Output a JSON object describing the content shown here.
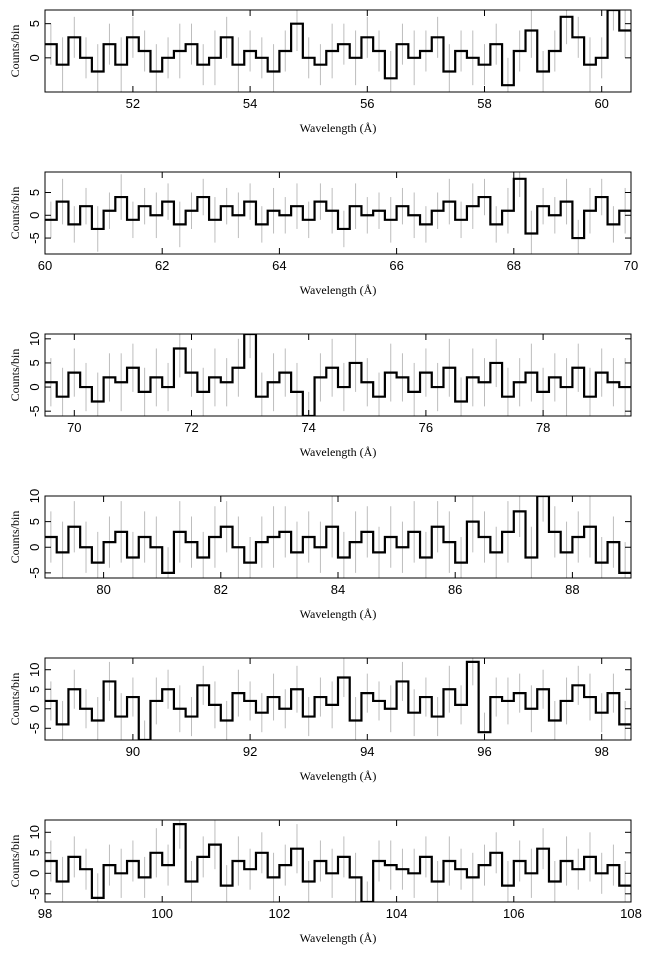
{
  "chart_data": [
    {
      "type": "step",
      "xlabel": "Wavelength (Å)",
      "ylabel": "Counts/bin",
      "color": "#000000",
      "error_color": "#bdbdbd",
      "xlim": [
        50.5,
        60.5
      ],
      "ylim": [
        -5,
        7
      ],
      "xticks": [
        52,
        54,
        56,
        58,
        60
      ],
      "yticks": [
        0,
        5
      ],
      "x": [
        50.6,
        50.8,
        51,
        51.2,
        51.4,
        51.6,
        51.8,
        52,
        52.2,
        52.4,
        52.6,
        52.8,
        53,
        53.2,
        53.4,
        53.6,
        53.8,
        54,
        54.2,
        54.4,
        54.6,
        54.8,
        55,
        55.2,
        55.4,
        55.6,
        55.8,
        56,
        56.2,
        56.4,
        56.6,
        56.8,
        57,
        57.2,
        57.4,
        57.6,
        57.8,
        58,
        58.2,
        58.4,
        58.6,
        58.8,
        59,
        59.2,
        59.4,
        59.6,
        59.8,
        60,
        60.2,
        60.4
      ],
      "values": [
        2,
        -1,
        3,
        0,
        -2,
        2,
        -1,
        3,
        1,
        -2,
        0,
        1,
        2,
        -1,
        0,
        3,
        -1,
        1,
        0,
        -2,
        1,
        5,
        0,
        -1,
        1,
        2,
        0,
        3,
        1,
        -3,
        2,
        0,
        1,
        3,
        -2,
        1,
        0,
        -1,
        2,
        -4,
        1,
        4,
        -2,
        1,
        6,
        3,
        -1,
        0,
        7,
        4
      ],
      "errors": [
        3,
        4,
        3,
        3,
        4,
        3,
        4,
        3,
        3,
        4,
        3,
        4,
        3,
        3,
        4,
        3,
        4,
        3,
        3,
        4,
        3,
        4,
        3,
        3,
        4,
        3,
        4,
        3,
        3,
        4,
        3,
        4,
        3,
        3,
        4,
        3,
        4,
        3,
        3,
        4,
        3,
        4,
        3,
        3,
        4,
        3,
        4,
        3,
        3,
        4
      ]
    },
    {
      "type": "step",
      "xlabel": "Wavelength (Å)",
      "ylabel": "Counts/bin",
      "color": "#000000",
      "error_color": "#bdbdbd",
      "xlim": [
        60,
        70
      ],
      "ylim": [
        -8.5,
        9.5
      ],
      "xticks": [
        60,
        62,
        64,
        66,
        68,
        70
      ],
      "yticks": [
        -5,
        0,
        5
      ],
      "x": [
        60.1,
        60.3,
        60.5,
        60.7,
        60.9,
        61.1,
        61.3,
        61.5,
        61.7,
        61.9,
        62.1,
        62.3,
        62.5,
        62.7,
        62.9,
        63.1,
        63.3,
        63.5,
        63.7,
        63.9,
        64.1,
        64.3,
        64.5,
        64.7,
        64.9,
        65.1,
        65.3,
        65.5,
        65.7,
        65.9,
        66.1,
        66.3,
        66.5,
        66.7,
        66.9,
        67.1,
        67.3,
        67.5,
        67.7,
        67.9,
        68.1,
        68.3,
        68.5,
        68.7,
        68.9,
        69.1,
        69.3,
        69.5,
        69.7,
        69.9
      ],
      "values": [
        -1,
        3,
        -2,
        2,
        -3,
        1,
        4,
        -1,
        2,
        0,
        3,
        -2,
        1,
        4,
        -1,
        2,
        0,
        3,
        -2,
        1,
        0,
        2,
        -1,
        3,
        1,
        -3,
        2,
        0,
        1,
        -1,
        2,
        0,
        -2,
        1,
        3,
        -1,
        2,
        4,
        -2,
        1,
        8,
        -4,
        2,
        0,
        3,
        -5,
        1,
        4,
        -2,
        1
      ],
      "errors": [
        4,
        5,
        4,
        4,
        5,
        4,
        5,
        4,
        4,
        5,
        4,
        5,
        4,
        4,
        5,
        4,
        5,
        4,
        4,
        5,
        4,
        5,
        4,
        4,
        5,
        4,
        5,
        4,
        4,
        5,
        4,
        5,
        4,
        4,
        5,
        4,
        5,
        4,
        4,
        5,
        4,
        5,
        4,
        4,
        5,
        4,
        5,
        4,
        4,
        5
      ]
    },
    {
      "type": "step",
      "xlabel": "Wavelength (Å)",
      "ylabel": "Counts/bin",
      "color": "#000000",
      "error_color": "#bdbdbd",
      "xlim": [
        69.5,
        79.5
      ],
      "ylim": [
        -6,
        11
      ],
      "xticks": [
        70,
        72,
        74,
        76,
        78
      ],
      "yticks": [
        -5,
        0,
        5,
        10
      ],
      "x": [
        69.6,
        69.8,
        70,
        70.2,
        70.4,
        70.6,
        70.8,
        71,
        71.2,
        71.4,
        71.6,
        71.8,
        72,
        72.2,
        72.4,
        72.6,
        72.8,
        73,
        73.2,
        73.4,
        73.6,
        73.8,
        74,
        74.2,
        74.4,
        74.6,
        74.8,
        75,
        75.2,
        75.4,
        75.6,
        75.8,
        76,
        76.2,
        76.4,
        76.6,
        76.8,
        77,
        77.2,
        77.4,
        77.6,
        77.8,
        78,
        78.2,
        78.4,
        78.6,
        78.8,
        79,
        79.2,
        79.4
      ],
      "values": [
        1,
        -2,
        3,
        0,
        -3,
        2,
        1,
        4,
        -1,
        2,
        0,
        8,
        3,
        -1,
        2,
        1,
        4,
        11,
        -2,
        1,
        3,
        -1,
        -6,
        2,
        4,
        0,
        5,
        1,
        -2,
        3,
        2,
        -1,
        3,
        0,
        4,
        -3,
        2,
        1,
        5,
        -2,
        1,
        3,
        -1,
        2,
        0,
        4,
        -2,
        3,
        1,
        0
      ],
      "errors": [
        5,
        6,
        5,
        5,
        6,
        5,
        6,
        5,
        5,
        6,
        5,
        6,
        5,
        5,
        6,
        5,
        6,
        5,
        5,
        6,
        5,
        6,
        5,
        5,
        6,
        5,
        6,
        5,
        5,
        6,
        5,
        6,
        5,
        5,
        6,
        5,
        6,
        5,
        5,
        6,
        5,
        6,
        5,
        5,
        6,
        5,
        6,
        5,
        5,
        6
      ]
    },
    {
      "type": "step",
      "xlabel": "Wavelength (Å)",
      "ylabel": "Counts/bin",
      "color": "#000000",
      "error_color": "#bdbdbd",
      "xlim": [
        79,
        89
      ],
      "ylim": [
        -6,
        10
      ],
      "xticks": [
        80,
        82,
        84,
        86,
        88
      ],
      "yticks": [
        -5,
        0,
        5,
        10
      ],
      "x": [
        79.1,
        79.3,
        79.5,
        79.7,
        79.9,
        80.1,
        80.3,
        80.5,
        80.7,
        80.9,
        81.1,
        81.3,
        81.5,
        81.7,
        81.9,
        82.1,
        82.3,
        82.5,
        82.7,
        82.9,
        83.1,
        83.3,
        83.5,
        83.7,
        83.9,
        84.1,
        84.3,
        84.5,
        84.7,
        84.9,
        85.1,
        85.3,
        85.5,
        85.7,
        85.9,
        86.1,
        86.3,
        86.5,
        86.7,
        86.9,
        87.1,
        87.3,
        87.5,
        87.7,
        87.9,
        88.1,
        88.3,
        88.5,
        88.7,
        88.9
      ],
      "values": [
        2,
        -1,
        4,
        0,
        -3,
        1,
        3,
        -2,
        2,
        0,
        -5,
        3,
        1,
        -2,
        2,
        4,
        0,
        -3,
        1,
        2,
        3,
        -1,
        2,
        0,
        4,
        -2,
        1,
        3,
        -1,
        2,
        0,
        3,
        -2,
        4,
        1,
        -3,
        5,
        2,
        -1,
        3,
        7,
        -2,
        10,
        3,
        -1,
        2,
        4,
        -3,
        1,
        -5
      ],
      "errors": [
        5,
        6,
        5,
        5,
        6,
        5,
        6,
        5,
        5,
        6,
        5,
        6,
        5,
        5,
        6,
        5,
        6,
        5,
        5,
        6,
        5,
        6,
        5,
        5,
        6,
        5,
        6,
        5,
        5,
        6,
        5,
        6,
        5,
        5,
        6,
        5,
        6,
        5,
        5,
        6,
        5,
        6,
        5,
        5,
        6,
        5,
        6,
        5,
        5,
        6
      ]
    },
    {
      "type": "step",
      "xlabel": "Wavelength (Å)",
      "ylabel": "Counts/bin",
      "color": "#000000",
      "error_color": "#bdbdbd",
      "xlim": [
        88.5,
        98.5
      ],
      "ylim": [
        -8,
        13
      ],
      "xticks": [
        90,
        92,
        94,
        96,
        98
      ],
      "yticks": [
        -5,
        0,
        5,
        10
      ],
      "x": [
        88.6,
        88.8,
        89,
        89.2,
        89.4,
        89.6,
        89.8,
        90,
        90.2,
        90.4,
        90.6,
        90.8,
        91,
        91.2,
        91.4,
        91.6,
        91.8,
        92,
        92.2,
        92.4,
        92.6,
        92.8,
        93,
        93.2,
        93.4,
        93.6,
        93.8,
        94,
        94.2,
        94.4,
        94.6,
        94.8,
        95,
        95.2,
        95.4,
        95.6,
        95.8,
        96,
        96.2,
        96.4,
        96.6,
        96.8,
        97,
        97.2,
        97.4,
        97.6,
        97.8,
        98,
        98.2,
        98.4
      ],
      "values": [
        2,
        -4,
        5,
        0,
        -3,
        7,
        -2,
        3,
        -8,
        2,
        5,
        0,
        -2,
        6,
        1,
        -3,
        4,
        2,
        -1,
        3,
        0,
        5,
        -2,
        3,
        1,
        8,
        -3,
        4,
        2,
        0,
        7,
        -1,
        3,
        -2,
        5,
        1,
        12,
        -6,
        3,
        2,
        4,
        0,
        5,
        -3,
        2,
        6,
        3,
        -1,
        4,
        -4
      ],
      "errors": [
        5,
        6,
        5,
        5,
        6,
        5,
        6,
        5,
        5,
        6,
        5,
        6,
        5,
        5,
        6,
        5,
        6,
        5,
        5,
        6,
        5,
        6,
        5,
        5,
        6,
        5,
        6,
        5,
        5,
        6,
        5,
        6,
        5,
        5,
        6,
        5,
        6,
        5,
        5,
        6,
        5,
        6,
        5,
        5,
        6,
        5,
        6,
        5,
        5,
        6
      ]
    },
    {
      "type": "step",
      "xlabel": "Wavelength (Å)",
      "ylabel": "Counts/bin",
      "color": "#000000",
      "error_color": "#bdbdbd",
      "xlim": [
        98,
        108
      ],
      "ylim": [
        -7,
        13
      ],
      "xticks": [
        98,
        100,
        102,
        104,
        106,
        108
      ],
      "yticks": [
        -5,
        0,
        5,
        10
      ],
      "x": [
        98.1,
        98.3,
        98.5,
        98.7,
        98.9,
        99.1,
        99.3,
        99.5,
        99.7,
        99.9,
        100.1,
        100.3,
        100.5,
        100.7,
        100.9,
        101.1,
        101.3,
        101.5,
        101.7,
        101.9,
        102.1,
        102.3,
        102.5,
        102.7,
        102.9,
        103.1,
        103.3,
        103.5,
        103.7,
        103.9,
        104.1,
        104.3,
        104.5,
        104.7,
        104.9,
        105.1,
        105.3,
        105.5,
        105.7,
        105.9,
        106.1,
        106.3,
        106.5,
        106.7,
        106.9,
        107.1,
        107.3,
        107.5,
        107.7,
        107.9
      ],
      "values": [
        3,
        -2,
        4,
        1,
        -6,
        2,
        0,
        3,
        -1,
        5,
        2,
        12,
        -2,
        4,
        7,
        -3,
        3,
        1,
        5,
        -1,
        2,
        6,
        -2,
        3,
        0,
        4,
        -1,
        -7,
        3,
        2,
        1,
        0,
        4,
        -2,
        3,
        1,
        -1,
        2,
        5,
        -3,
        3,
        0,
        6,
        -2,
        3,
        1,
        4,
        0,
        2,
        -3
      ],
      "errors": [
        5,
        6,
        5,
        5,
        6,
        5,
        6,
        5,
        5,
        6,
        5,
        6,
        5,
        5,
        6,
        5,
        6,
        5,
        5,
        6,
        5,
        6,
        5,
        5,
        6,
        5,
        6,
        5,
        5,
        6,
        5,
        6,
        5,
        5,
        6,
        5,
        6,
        5,
        5,
        6,
        5,
        6,
        5,
        5,
        6,
        5,
        6,
        5,
        5,
        6
      ]
    }
  ]
}
